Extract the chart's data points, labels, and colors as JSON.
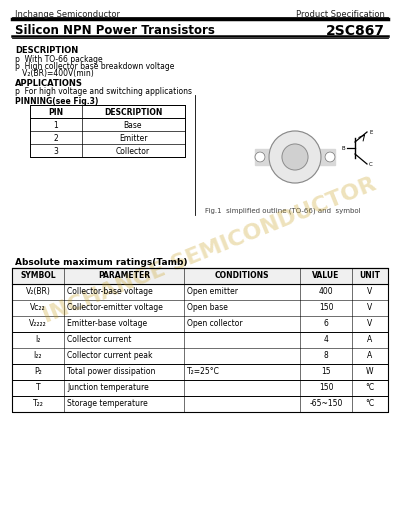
{
  "company": "Inchange Semiconductor",
  "spec_label": "Product Specification",
  "product_title": "Silicon NPN Power Transistors",
  "part_number": "2SC867",
  "description_title": "DESCRIPTION",
  "desc_line1": "p  With TO-66 package",
  "desc_line2": "p  High collector base breakdown voltage",
  "desc_line3": "   V₂(BR)=400V(min)",
  "applications_title": "APPLICATIONS",
  "app_line1": "p  For high voltage and switching applications",
  "pinning_title": "PINNING(see Fig.3)",
  "pin_headers": [
    "PIN",
    "DESCRIPTION"
  ],
  "pin_rows": [
    [
      "1",
      "Base"
    ],
    [
      "2",
      "Emitter"
    ],
    [
      "3",
      "Collector"
    ]
  ],
  "fig_caption": "Fig.1  simplified outline (TO-66) and  symbol",
  "abs_title": "Absolute maximum ratings(Tamb)",
  "abs_headers": [
    "SYMBOL",
    "PARAMETER",
    "CONDITIONS",
    "VALUE",
    "UNIT"
  ],
  "symbols": [
    "V₂(BR)",
    "Vc₂₂",
    "V₂₂₂₂",
    "I₂",
    "I₂₂",
    "P₂",
    "T",
    "T₂₂"
  ],
  "params": [
    "Collector-base voltage",
    "Collector-emitter voltage",
    "Emitter-base voltage",
    "Collector current",
    "Collector current peak",
    "Total power dissipation",
    "Junction temperature",
    "Storage temperature"
  ],
  "conds": [
    "Open emitter",
    "Open base",
    "Open collector",
    "",
    "",
    "T₂=25°C",
    "",
    ""
  ],
  "vals": [
    "400",
    "150",
    "6",
    "4",
    "8",
    "15",
    "150",
    "-65~150"
  ],
  "units": [
    "V",
    "V",
    "V",
    "A",
    "A",
    "W",
    "°C",
    "°C"
  ],
  "watermark": "INCHANGE SEMICONDUCTOR",
  "wm_color": "#c8a020",
  "bg_color": "#ffffff"
}
